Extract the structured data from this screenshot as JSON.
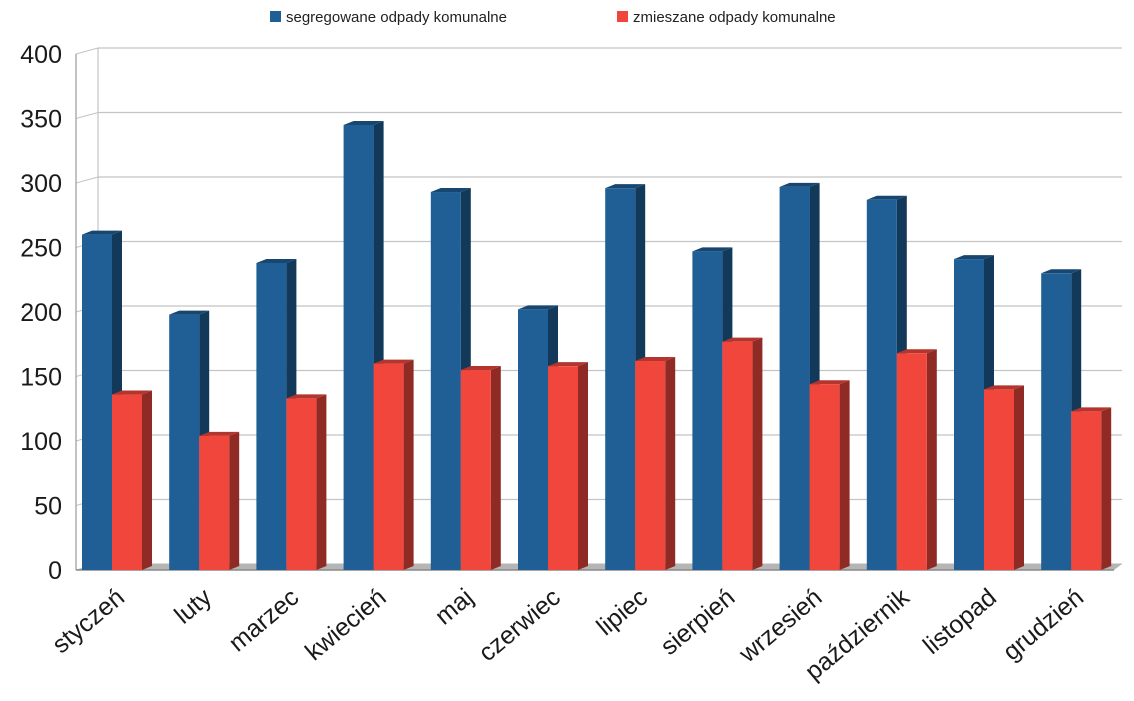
{
  "chart_data": {
    "type": "bar",
    "categories": [
      "styczeń",
      "luty",
      "marzec",
      "kwiecień",
      "maj",
      "czerwiec",
      "lipiec",
      "sierpień",
      "wrzesień",
      "październik",
      "listopad",
      "grudzień"
    ],
    "series": [
      {
        "name": "segregowane odpady komunalne",
        "color": "#1f5f96",
        "values": [
          260,
          198,
          238,
          345,
          293,
          202,
          296,
          247,
          297,
          287,
          241,
          230
        ]
      },
      {
        "name": "zmieszane odpady komunalne",
        "color": "#f0463c",
        "values": [
          136,
          104,
          133,
          160,
          155,
          158,
          162,
          177,
          144,
          168,
          140,
          123
        ]
      }
    ],
    "ylim": [
      0,
      400
    ],
    "yticks": [
      0,
      50,
      100,
      150,
      200,
      250,
      300,
      350,
      400
    ],
    "grid": true,
    "legend": "top"
  }
}
